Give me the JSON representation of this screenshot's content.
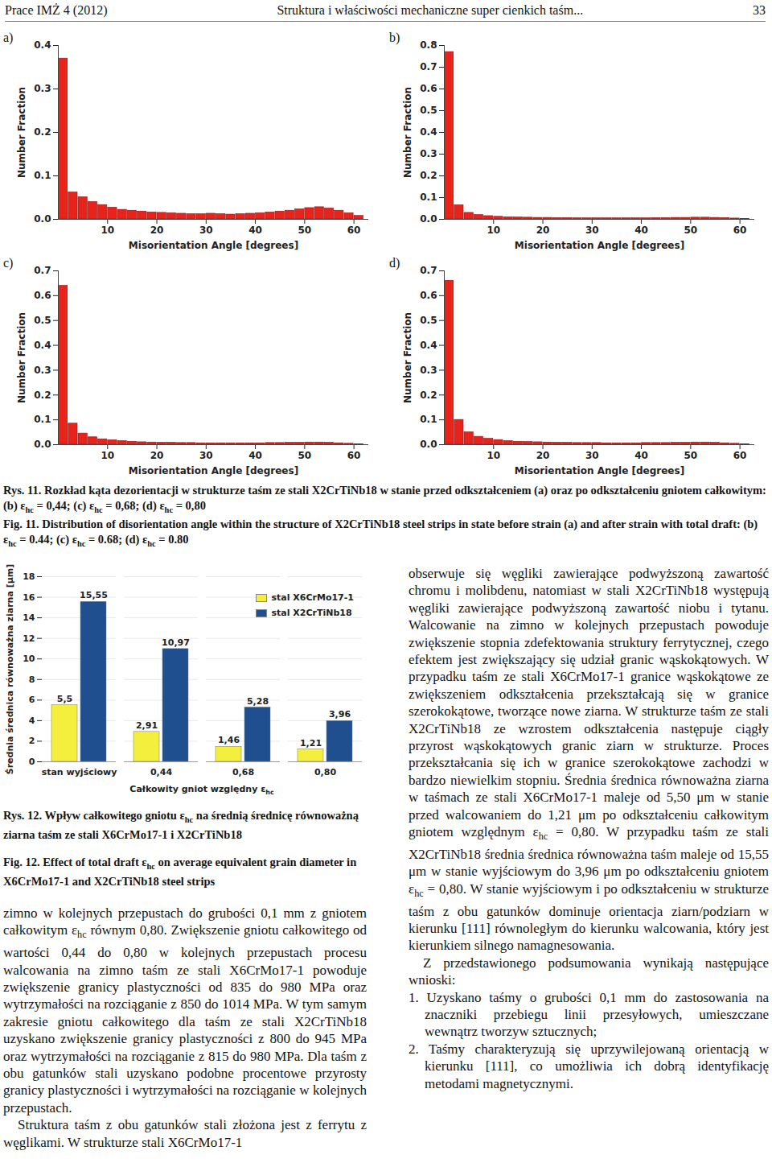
{
  "header": {
    "journal": "Prace IMŻ 4 (2012)",
    "running_title": "Struktura i właściwości mechaniczne super cienkich taśm...",
    "page": 33
  },
  "chart_data": [
    {
      "type": "histogram",
      "title": "a)",
      "x_label": "Misorientation Angle [degrees]",
      "y_label": "Number Fraction",
      "color": "#e8231c",
      "bins": [
        0,
        2,
        4,
        6,
        8,
        10,
        12,
        14,
        16,
        18,
        20,
        22,
        24,
        26,
        28,
        30,
        32,
        34,
        36,
        38,
        40,
        42,
        44,
        46,
        48,
        50,
        52,
        54,
        56,
        58,
        60,
        62
      ],
      "values": [
        0.37,
        0.062,
        0.051,
        0.04,
        0.033,
        0.027,
        0.022,
        0.02,
        0.018,
        0.016,
        0.015,
        0.014,
        0.013,
        0.012,
        0.012,
        0.013,
        0.012,
        0.011,
        0.012,
        0.013,
        0.014,
        0.016,
        0.018,
        0.02,
        0.023,
        0.026,
        0.028,
        0.025,
        0.02,
        0.014,
        0.008
      ],
      "xlim": [
        0,
        63
      ],
      "xticks": [
        10,
        20,
        30,
        40,
        50,
        60
      ],
      "ylim": [
        0,
        0.4
      ],
      "yticks": [
        {
          "value": 0,
          "label": "0.0"
        },
        0.1,
        0.2,
        0.3,
        0.4
      ]
    },
    {
      "type": "histogram",
      "title": "b)",
      "x_label": "Misorientation Angle [degrees]",
      "y_label": "Number Fraction",
      "color": "#e8231c",
      "bins": [
        0,
        2,
        4,
        6,
        8,
        10,
        12,
        14,
        16,
        18,
        20,
        22,
        24,
        26,
        28,
        30,
        32,
        34,
        36,
        38,
        40,
        42,
        44,
        46,
        48,
        50,
        52,
        54,
        56,
        58,
        60,
        62
      ],
      "values": [
        0.77,
        0.065,
        0.03,
        0.02,
        0.015,
        0.012,
        0.01,
        0.009,
        0.008,
        0.007,
        0.007,
        0.006,
        0.006,
        0.005,
        0.005,
        0.005,
        0.005,
        0.005,
        0.005,
        0.005,
        0.005,
        0.006,
        0.006,
        0.007,
        0.007,
        0.008,
        0.008,
        0.007,
        0.006,
        0.004,
        0.002
      ],
      "xlim": [
        0,
        63
      ],
      "xticks": [
        10,
        20,
        30,
        40,
        50,
        60
      ],
      "ylim": [
        0,
        0.8
      ],
      "yticks": [
        {
          "value": 0,
          "label": "0.0"
        },
        0.1,
        0.2,
        0.3,
        0.4,
        0.5,
        0.6,
        0.7,
        0.8
      ]
    },
    {
      "type": "histogram",
      "title": "c)",
      "x_label": "Misorientation Angle [degrees]",
      "y_label": "Number Fraction",
      "color": "#e8231c",
      "bins": [
        0,
        2,
        4,
        6,
        8,
        10,
        12,
        14,
        16,
        18,
        20,
        22,
        24,
        26,
        28,
        30,
        32,
        34,
        36,
        38,
        40,
        42,
        44,
        46,
        48,
        50,
        52,
        54,
        56,
        58,
        60,
        62
      ],
      "values": [
        0.64,
        0.085,
        0.045,
        0.03,
        0.022,
        0.018,
        0.015,
        0.012,
        0.01,
        0.009,
        0.008,
        0.008,
        0.007,
        0.007,
        0.006,
        0.006,
        0.006,
        0.006,
        0.006,
        0.006,
        0.006,
        0.007,
        0.007,
        0.008,
        0.008,
        0.009,
        0.009,
        0.008,
        0.006,
        0.004,
        0.002
      ],
      "xlim": [
        0,
        63
      ],
      "xticks": [
        10,
        20,
        30,
        40,
        50,
        60
      ],
      "ylim": [
        0,
        0.7
      ],
      "yticks": [
        {
          "value": 0,
          "label": "0.0"
        },
        0.1,
        0.2,
        0.3,
        0.4,
        0.5,
        0.6,
        0.7
      ]
    },
    {
      "type": "histogram",
      "title": "d)",
      "x_label": "Misorientation Angle [degrees]",
      "y_label": "Number Fraction",
      "color": "#e8231c",
      "bins": [
        0,
        2,
        4,
        6,
        8,
        10,
        12,
        14,
        16,
        18,
        20,
        22,
        24,
        26,
        28,
        30,
        32,
        34,
        36,
        38,
        40,
        42,
        44,
        46,
        48,
        50,
        52,
        54,
        56,
        58,
        60,
        62
      ],
      "values": [
        0.66,
        0.1,
        0.05,
        0.032,
        0.024,
        0.019,
        0.015,
        0.012,
        0.011,
        0.01,
        0.009,
        0.008,
        0.008,
        0.007,
        0.007,
        0.007,
        0.006,
        0.006,
        0.006,
        0.006,
        0.007,
        0.007,
        0.007,
        0.008,
        0.008,
        0.009,
        0.009,
        0.008,
        0.006,
        0.004,
        0.002
      ],
      "xlim": [
        0,
        63
      ],
      "xticks": [
        10,
        20,
        30,
        40,
        50,
        60
      ],
      "ylim": [
        0,
        0.7
      ],
      "yticks": [
        {
          "value": 0,
          "label": "0.0"
        },
        0.1,
        0.2,
        0.3,
        0.4,
        0.5,
        0.6,
        0.7
      ]
    },
    {
      "type": "bar",
      "x_label": "Całkowity gniot względny εhc",
      "y_label": "Średnia średnica równoważna ziarna [μm]",
      "categories": [
        "stan wyjściowy",
        "0,44",
        "0,68",
        "0,80"
      ],
      "series": [
        {
          "name": "stal X6CrMo17-1",
          "color": "#f3ef3c",
          "values": [
            5.5,
            2.91,
            1.46,
            1.21
          ],
          "value_labels": [
            "5,5",
            "2,91",
            "1,46",
            "1,21"
          ]
        },
        {
          "name": "stal X2CrTiNb18",
          "color": "#1f4f8f",
          "values": [
            15.55,
            10.97,
            5.28,
            3.96
          ],
          "value_labels": [
            "15,55",
            "10,97",
            "5,28",
            "3,96"
          ]
        }
      ],
      "ylim": [
        0,
        18
      ],
      "yticks": [
        0,
        2,
        4,
        6,
        8,
        10,
        12,
        14,
        16,
        18
      ],
      "grid": true,
      "legend": "top-right",
      "data_labels": true
    }
  ],
  "captions": {
    "fig11": {
      "pl": "Rys. 11. Rozkład kąta dezorientacji w strukturze taśm ze stali X2CrTiNb18 w stanie przed odkształceniem (a) oraz po odkształceniu gniotem całkowitym: (b) εhc = 0,44; (c) εhc = 0,68; (d) εhc = 0,80",
      "en": "Fig. 11. Distribution of disorientation angle within the structure of X2CrTiNb18 steel strips in state before strain (a) and after strain with total draft: (b) εhc = 0.44; (c) εhc = 0.68; (d) εhc = 0.80"
    },
    "fig12": {
      "pl": "Rys. 12. Wpływ całkowitego gniotu εhc na średnią średnicę równoważną ziarna taśm ze stali X6CrMo17-1 i X2CrTiNb18",
      "en": "Fig. 12. Effect of total draft εhc on average equivalent grain diameter in X6CrMo17-1 and X2CrTiNb18 steel strips"
    }
  },
  "text": {
    "left": [
      "zimno w kolejnych przepustach do grubości 0,1 mm z gniotem całkowitym εhc równym 0,80. Zwiększenie gniotu całkowitego od wartości 0,44 do 0,80 w kolejnych przepustach procesu walcowania na zimno taśm ze stali X6CrMo17-1 powoduje zwiększenie granicy plastyczności od 835 do 980 MPa oraz wytrzymałości na rozciąganie z 850 do 1014 MPa. W tym samym zakresie gniotu całkowitego dla taśm ze stali X2CrTiNb18 uzyskano zwiększenie granicy plastyczności z 800 do 945 MPa oraz wytrzymałości na rozciąganie z 815 do 980 MPa. Dla taśm z obu gatunków stali uzyskano podobne procentowe przyrosty granicy plastyczności i wytrzymałości na rozciąganie w kolejnych przepustach.",
      "Struktura taśm z obu gatunków stali złożona jest z ferrytu z węglikami. W strukturze stali X6CrMo17-1"
    ],
    "right": [
      "obserwuje się węgliki zawierające podwyższoną zawartość chromu i molibdenu, natomiast w stali X2CrTiNb18 występują węgliki zawierające podwyższoną zawartość niobu i tytanu. Walcowanie na zimno w kolejnych przepustach powoduje zwiększenie stopnia zdefektowania struktury ferrytycznej, czego efektem jest zwiększający się udział granic wąskokątowych. W przypadku taśm ze stali X6CrMo17-1 granice wąskokątowe ze zwiększeniem odkształcenia przekształcają się w granice szerokokątowe, tworzące nowe ziarna. W strukturze taśm ze stali X2CrTiNb18 ze wzrostem odkształcenia następuje ciągły przyrost wąskokątowych granic ziarn w strukturze. Proces przekształcania się ich w granice szerokokątowe zachodzi w bardzo niewielkim stopniu. Średnia średnica równoważna ziarna w taśmach ze stali X6CrMo17-1 maleje od 5,50 μm w stanie przed walcowaniem do 1,21 μm po odkształceniu całkowitym gniotem względnym εhc = 0,80. W przypadku taśm ze stali X2CrTiNb18 średnia średnica równoważna taśm maleje od 15,55 μm w stanie wyjściowym do 3,96 μm po odkształceniu gniotem εhc = 0,80. W stanie wyjściowym i po odkształceniu w strukturze taśm z obu gatunków dominuje orientacja ziarn/podziarn w kierunku [111] równoległym do kierunku walcowania, który jest kierunkiem silnego namagnesowania.",
      "Z przedstawionego podsumowania wynikają następujące wnioski:"
    ],
    "conclusions": [
      "1. Uzyskano taśmy o grubości 0,1 mm do zastosowania na znaczniki przebiegu linii przesyłowych, umieszczane wewnątrz tworzyw sztucznych;",
      "2. Taśmy charakteryzują się uprzywilejowaną orientacją w kierunku [111], co umożliwia ich dobrą identyfikację metodami magnetycznymi."
    ]
  }
}
